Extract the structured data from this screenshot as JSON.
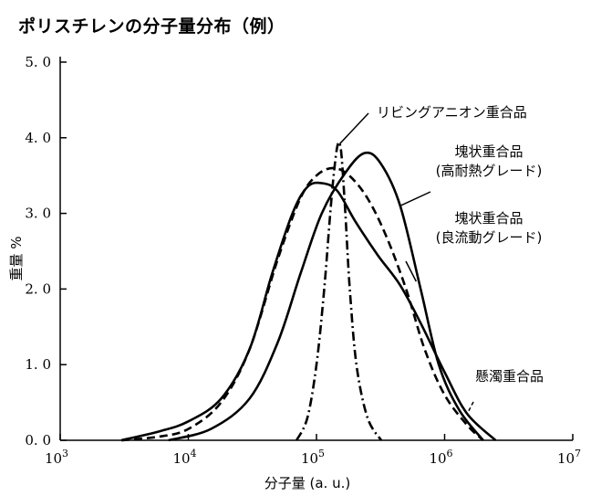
{
  "title": "ポリスチレンの分子量分布（例）",
  "chart_data": {
    "type": "line",
    "title": "ポリスチレンの分子量分布（例）",
    "xlabel": "分子量 (a. u.)",
    "ylabel": "重量 %",
    "x_scale": "log",
    "xlim": [
      1000,
      10000000
    ],
    "ylim": [
      0,
      5
    ],
    "x_ticks": [
      1000,
      10000,
      100000,
      1000000,
      10000000
    ],
    "x_tick_labels": [
      {
        "base": "10",
        "exp": "3"
      },
      {
        "base": "10",
        "exp": "4"
      },
      {
        "base": "10",
        "exp": "5"
      },
      {
        "base": "10",
        "exp": "6"
      },
      {
        "base": "10",
        "exp": "7"
      }
    ],
    "y_ticks": [
      0,
      1,
      2,
      3,
      4,
      5
    ],
    "y_tick_labels": [
      "0. 0",
      "1. 0",
      "2. 0",
      "3. 0",
      "4. 0",
      "5. 0"
    ],
    "grid": false,
    "series": [
      {
        "name": "リビングアニオン重合品",
        "style": "dashdot",
        "points": [
          [
            70000,
            0.0
          ],
          [
            85000,
            0.3
          ],
          [
            100000,
            1.0
          ],
          [
            115000,
            2.0
          ],
          [
            128000,
            3.0
          ],
          [
            138000,
            3.6
          ],
          [
            146000,
            3.9
          ],
          [
            152000,
            3.92
          ],
          [
            158000,
            3.7
          ],
          [
            168000,
            3.0
          ],
          [
            182000,
            2.0
          ],
          [
            205000,
            1.0
          ],
          [
            250000,
            0.3
          ],
          [
            320000,
            0.0
          ]
        ]
      },
      {
        "name": "塊状重合品（高耐熱グレード）",
        "style": "solid",
        "points": [
          [
            7000,
            0.0
          ],
          [
            15000,
            0.15
          ],
          [
            30000,
            0.55
          ],
          [
            50000,
            1.3
          ],
          [
            75000,
            2.2
          ],
          [
            110000,
            3.0
          ],
          [
            170000,
            3.55
          ],
          [
            240000,
            3.8
          ],
          [
            320000,
            3.65
          ],
          [
            450000,
            3.1
          ],
          [
            650000,
            2.0
          ],
          [
            900000,
            1.0
          ],
          [
            1300000,
            0.4
          ],
          [
            2000000,
            0.0
          ]
        ]
      },
      {
        "name": "塊状重合品（良流動グレード）",
        "style": "dashed",
        "points": [
          [
            3000,
            0.0
          ],
          [
            6000,
            0.05
          ],
          [
            10000,
            0.15
          ],
          [
            18000,
            0.5
          ],
          [
            30000,
            1.2
          ],
          [
            50000,
            2.4
          ],
          [
            75000,
            3.2
          ],
          [
            100000,
            3.5
          ],
          [
            135000,
            3.6
          ],
          [
            180000,
            3.5
          ],
          [
            250000,
            3.2
          ],
          [
            350000,
            2.7
          ],
          [
            500000,
            2.0
          ],
          [
            700000,
            1.2
          ],
          [
            1000000,
            0.6
          ],
          [
            1500000,
            0.2
          ],
          [
            2000000,
            0.0
          ]
        ]
      },
      {
        "name": "懸濁重合品",
        "style": "solid",
        "points": [
          [
            3000,
            0.0
          ],
          [
            6000,
            0.12
          ],
          [
            10000,
            0.25
          ],
          [
            18000,
            0.55
          ],
          [
            30000,
            1.2
          ],
          [
            45000,
            2.2
          ],
          [
            65000,
            3.0
          ],
          [
            85000,
            3.35
          ],
          [
            110000,
            3.4
          ],
          [
            145000,
            3.3
          ],
          [
            200000,
            2.9
          ],
          [
            300000,
            2.45
          ],
          [
            450000,
            2.05
          ],
          [
            650000,
            1.55
          ],
          [
            1000000,
            0.9
          ],
          [
            1500000,
            0.35
          ],
          [
            2500000,
            0.0
          ]
        ]
      }
    ],
    "annotations": [
      {
        "lines": [
          "リビングアニオン重合品"
        ],
        "target": [
          152000,
          3.92
        ]
      },
      {
        "lines": [
          "塊状重合品",
          "(高耐熱グレード)"
        ],
        "target": [
          450000,
          3.1
        ]
      },
      {
        "lines": [
          "塊状重合品",
          "(良流動グレード)"
        ],
        "target": [
          600000,
          2.1
        ]
      },
      {
        "lines": [
          "懸濁重合品"
        ],
        "target": [
          1500000,
          0.35
        ]
      }
    ]
  }
}
